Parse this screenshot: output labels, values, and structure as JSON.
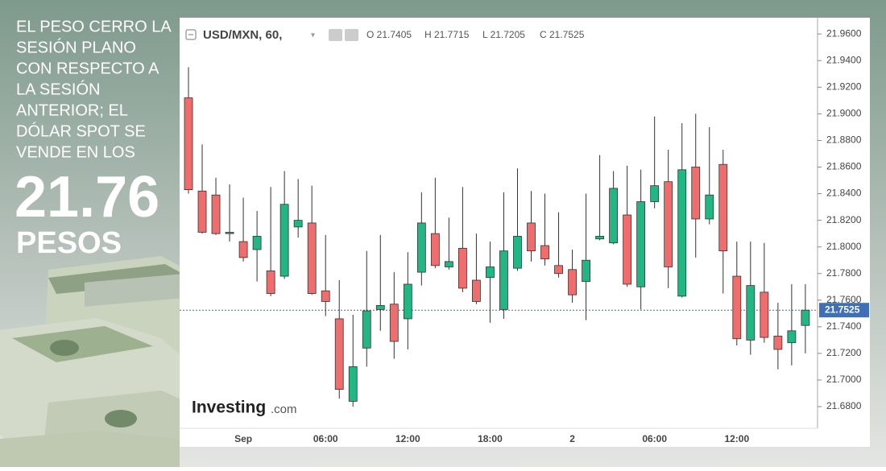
{
  "page": {
    "headline_lines": [
      "EL PESO CERRO LA",
      "SESIÓN PLANO",
      "CON RESPECTO A",
      "LA SESIÓN",
      "ANTERIOR; EL",
      "DÓLAR SPOT SE",
      "VENDE EN LOS"
    ],
    "big_value": "21.76",
    "big_unit": "PESOS"
  },
  "chart_data": {
    "type": "candlestick",
    "title": "USD/MXN, 60,",
    "ohlc_labels": [
      "O 21.7405",
      "H 21.7715",
      "L 21.7205",
      "C 21.7525"
    ],
    "watermark": [
      "Investing",
      ".com"
    ],
    "categories": [
      null,
      null,
      null,
      null,
      "Sep",
      null,
      null,
      null,
      null,
      null,
      "06:00",
      null,
      null,
      null,
      null,
      null,
      "12:00",
      null,
      null,
      null,
      null,
      null,
      "18:00",
      null,
      null,
      null,
      null,
      null,
      "2",
      null,
      null,
      null,
      null,
      null,
      "06:00",
      null,
      null,
      null,
      null,
      null,
      "12:00",
      null,
      null,
      null,
      null,
      null
    ],
    "open": [
      21.912,
      21.842,
      21.839,
      21.81,
      21.804,
      21.798,
      21.782,
      21.778,
      21.815,
      21.818,
      21.767,
      21.746,
      21.684,
      21.724,
      21.753,
      21.757,
      21.746,
      21.781,
      21.81,
      21.785,
      21.799,
      21.775,
      21.777,
      21.753,
      21.784,
      21.818,
      21.801,
      21.786,
      21.783,
      21.774,
      21.806,
      21.803,
      21.824,
      21.77,
      21.834,
      21.849,
      21.763,
      21.86,
      21.821,
      21.862,
      21.778,
      21.73,
      21.766,
      21.733,
      21.728,
      21.741
    ],
    "high": [
      21.935,
      21.877,
      21.852,
      21.847,
      21.837,
      21.827,
      21.845,
      21.857,
      21.851,
      21.846,
      21.809,
      21.775,
      21.749,
      21.797,
      21.809,
      21.781,
      21.796,
      21.841,
      21.852,
      21.822,
      21.845,
      21.81,
      21.804,
      21.841,
      21.859,
      21.842,
      21.84,
      21.826,
      21.798,
      21.84,
      21.869,
      21.857,
      21.861,
      21.858,
      21.898,
      21.873,
      21.893,
      21.9,
      21.89,
      21.873,
      21.804,
      21.804,
      21.803,
      21.758,
      21.772,
      21.772
    ],
    "low": [
      21.84,
      21.81,
      21.809,
      21.804,
      21.789,
      21.774,
      21.763,
      21.776,
      21.807,
      21.764,
      21.748,
      21.686,
      21.68,
      21.71,
      21.737,
      21.716,
      21.723,
      21.771,
      21.784,
      21.783,
      21.766,
      21.757,
      21.743,
      21.746,
      21.782,
      21.789,
      21.786,
      21.777,
      21.758,
      21.745,
      21.805,
      21.802,
      21.77,
      21.753,
      21.829,
      21.769,
      21.762,
      21.792,
      21.817,
      21.765,
      21.726,
      21.719,
      21.728,
      21.708,
      21.711,
      21.72
    ],
    "close": [
      21.843,
      21.811,
      21.81,
      21.811,
      21.792,
      21.808,
      21.765,
      21.832,
      21.82,
      21.765,
      21.759,
      21.693,
      21.71,
      21.752,
      21.756,
      21.729,
      21.772,
      21.818,
      21.786,
      21.789,
      21.769,
      21.759,
      21.785,
      21.797,
      21.808,
      21.797,
      21.791,
      21.78,
      21.764,
      21.79,
      21.808,
      21.844,
      21.772,
      21.834,
      21.846,
      21.785,
      21.858,
      21.821,
      21.839,
      21.797,
      21.731,
      21.771,
      21.732,
      21.723,
      21.737,
      21.7525
    ],
    "up_color": "#21b683",
    "down_color": "#ef6d6d",
    "ylim": [
      21.651,
      21.971
    ],
    "yticks": [
      {
        "value": 21.68,
        "label": "21.6800"
      },
      {
        "value": 21.7,
        "label": "21.7000"
      },
      {
        "value": 21.72,
        "label": "21.7200"
      },
      {
        "value": 21.74,
        "label": "21.7400"
      },
      {
        "value": 21.76,
        "label": "21.7600"
      },
      {
        "value": 21.78,
        "label": "21.7800"
      },
      {
        "value": 21.8,
        "label": "21.8000"
      },
      {
        "value": 21.82,
        "label": "21.8200"
      },
      {
        "value": 21.84,
        "label": "21.8400"
      },
      {
        "value": 21.86,
        "label": "21.8600"
      },
      {
        "value": 21.88,
        "label": "21.8800"
      },
      {
        "value": 21.9,
        "label": "21.9000"
      },
      {
        "value": 21.92,
        "label": "21.9200"
      },
      {
        "value": 21.94,
        "label": "21.9400"
      },
      {
        "value": 21.96,
        "label": "21.9600"
      }
    ],
    "price_line": {
      "value": 21.7525,
      "label": "21.7525",
      "color": "#3f6fb5"
    },
    "grid": false
  }
}
